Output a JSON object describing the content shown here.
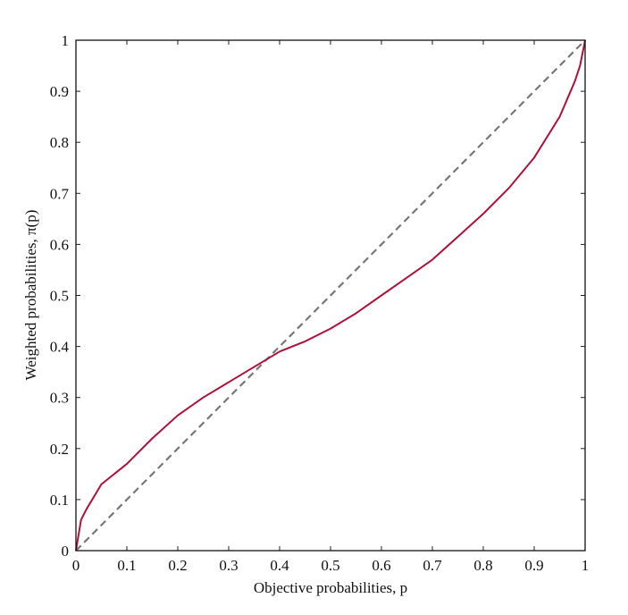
{
  "chart_data": {
    "type": "line",
    "xlabel": "Objective probabilities, p",
    "ylabel": "Weighted probabilities, π(p)",
    "xlim": [
      0,
      1
    ],
    "ylim": [
      0,
      1
    ],
    "xticks": [
      0,
      0.1,
      0.2,
      0.3,
      0.4,
      0.5,
      0.6,
      0.7,
      0.8,
      0.9,
      1
    ],
    "yticks": [
      0,
      0.1,
      0.2,
      0.3,
      0.4,
      0.5,
      0.6,
      0.7,
      0.8,
      0.9,
      1
    ],
    "series": [
      {
        "color": "#b0103a",
        "style": "solid",
        "x": [
          0,
          0.01,
          0.02,
          0.05,
          0.1,
          0.15,
          0.2,
          0.25,
          0.3,
          0.35,
          0.4,
          0.45,
          0.5,
          0.55,
          0.6,
          0.65,
          0.7,
          0.75,
          0.8,
          0.85,
          0.9,
          0.95,
          0.98,
          0.99,
          1
        ],
        "values": [
          0,
          0.06,
          0.08,
          0.13,
          0.17,
          0.22,
          0.265,
          0.3,
          0.33,
          0.36,
          0.39,
          0.41,
          0.435,
          0.465,
          0.5,
          0.535,
          0.57,
          0.615,
          0.66,
          0.71,
          0.77,
          0.85,
          0.92,
          0.95,
          1
        ]
      },
      {
        "color": "#777777",
        "style": "dashed",
        "x": [
          0,
          1
        ],
        "values": [
          0,
          1
        ]
      }
    ]
  }
}
